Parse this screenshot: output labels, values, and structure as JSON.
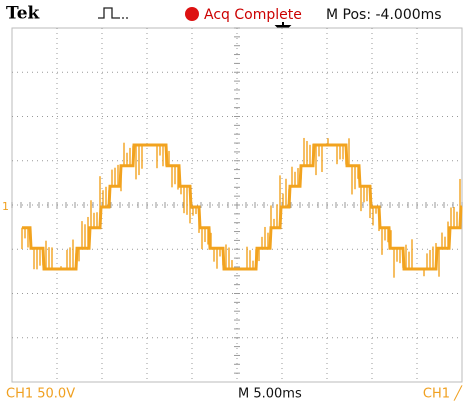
{
  "header": {
    "brand": "Tek",
    "status": "Acq Complete",
    "position": "M Pos: -4.000ms"
  },
  "footer": {
    "channel_scale": "CH1  50.0V",
    "timebase": "M 5.00ms",
    "trigger": "CH1  ╱"
  },
  "marker": "1"
}
